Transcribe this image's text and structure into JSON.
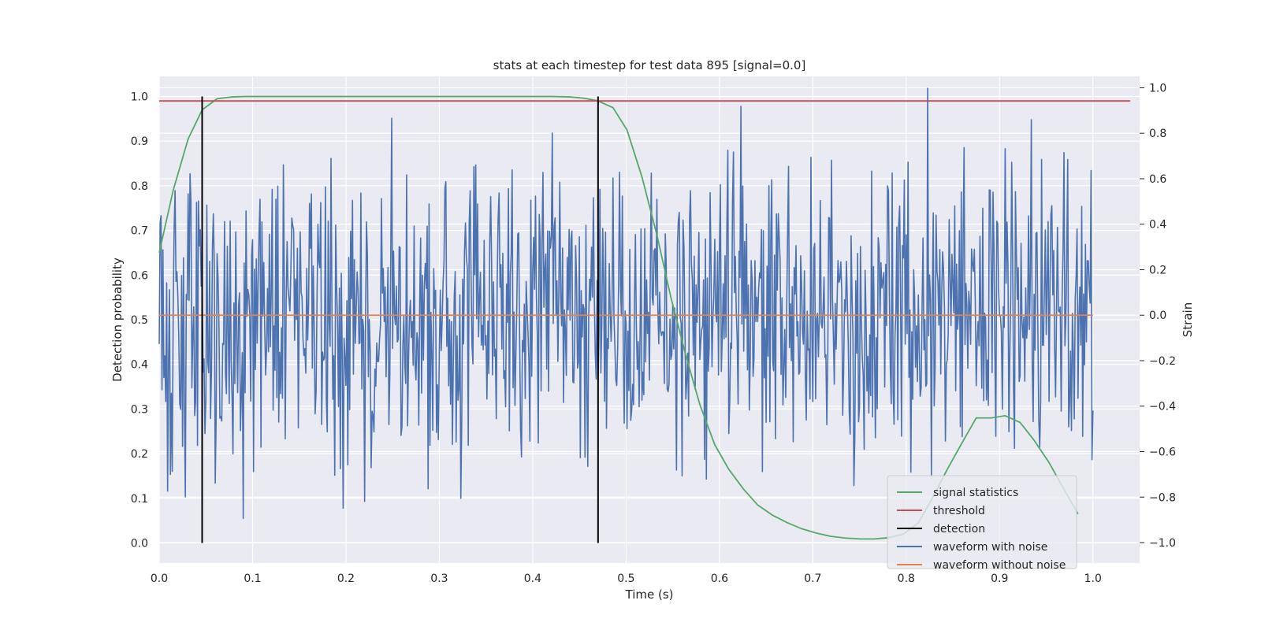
{
  "chart_data": {
    "type": "line",
    "title": "stats at each timestep for test data 895 [signal=0.0]",
    "xlabel": "Time (s)",
    "ylabel": "Detection probability",
    "y2label": "Strain",
    "xlim": [
      0.0,
      1.05
    ],
    "ylim": [
      -0.045,
      1.045
    ],
    "y2lim": [
      -1.09,
      1.05
    ],
    "xticks": [
      "0.0",
      "0.1",
      "0.2",
      "0.3",
      "0.4",
      "0.5",
      "0.6",
      "0.7",
      "0.8",
      "0.9",
      "1.0"
    ],
    "yticks": [
      "0.0",
      "0.1",
      "0.2",
      "0.3",
      "0.4",
      "0.5",
      "0.6",
      "0.7",
      "0.8",
      "0.9",
      "1.0"
    ],
    "y2ticks": [
      "−1.0",
      "−0.8",
      "−0.6",
      "−0.4",
      "−0.2",
      "0.0",
      "0.2",
      "0.4",
      "0.6",
      "0.8",
      "1.0"
    ],
    "grid": true,
    "legend_position": "lower-right",
    "series": [
      {
        "name": "signal statistics",
        "color": "#55a868",
        "axis": "left",
        "x": [
          0.0,
          0.015,
          0.031,
          0.046,
          0.062,
          0.078,
          0.093,
          0.109,
          0.15,
          0.25,
          0.35,
          0.42,
          0.44,
          0.455,
          0.47,
          0.486,
          0.501,
          0.517,
          0.533,
          0.548,
          0.564,
          0.579,
          0.595,
          0.61,
          0.626,
          0.641,
          0.657,
          0.673,
          0.688,
          0.704,
          0.719,
          0.735,
          0.751,
          0.766,
          0.782,
          0.797,
          0.813,
          0.828,
          0.844,
          0.86,
          0.875,
          0.891,
          0.906,
          0.922,
          0.937,
          0.953,
          0.969,
          0.984
        ],
        "values": [
          0.65,
          0.79,
          0.905,
          0.97,
          0.995,
          0.999,
          1.0,
          1.0,
          1.0,
          1.0,
          1.0,
          1.0,
          0.999,
          0.996,
          0.99,
          0.975,
          0.925,
          0.82,
          0.69,
          0.55,
          0.42,
          0.31,
          0.22,
          0.165,
          0.12,
          0.085,
          0.062,
          0.045,
          0.032,
          0.022,
          0.015,
          0.011,
          0.009,
          0.009,
          0.012,
          0.02,
          0.045,
          0.1,
          0.165,
          0.225,
          0.28,
          0.28,
          0.285,
          0.27,
          0.23,
          0.18,
          0.12,
          0.065
        ]
      },
      {
        "name": "threshold",
        "color": "#c44e52",
        "axis": "left",
        "x": [
          0.0,
          1.04
        ],
        "values": [
          0.99,
          0.99
        ]
      },
      {
        "name": "detection",
        "color": "#000000",
        "axis": "left",
        "segments": [
          {
            "x": 0.046,
            "from": 0.0,
            "to": 1.0
          },
          {
            "x": 0.47,
            "from": 0.0,
            "to": 1.0
          }
        ]
      },
      {
        "name": "waveform with noise",
        "color": "#4c72b0",
        "axis": "right",
        "x_start": 0.0,
        "x_end": 1.0,
        "seed": 895,
        "amplitude": 0.33,
        "max": 1.0,
        "min": -1.0
      },
      {
        "name": "waveform without noise",
        "color": "#dd8452",
        "axis": "right",
        "x": [
          0.0,
          1.0
        ],
        "values": [
          0.0,
          0.0
        ]
      }
    ]
  },
  "colors": {
    "plot_background": "#eaeaf2",
    "grid": "#ffffff",
    "text": "#262626"
  }
}
